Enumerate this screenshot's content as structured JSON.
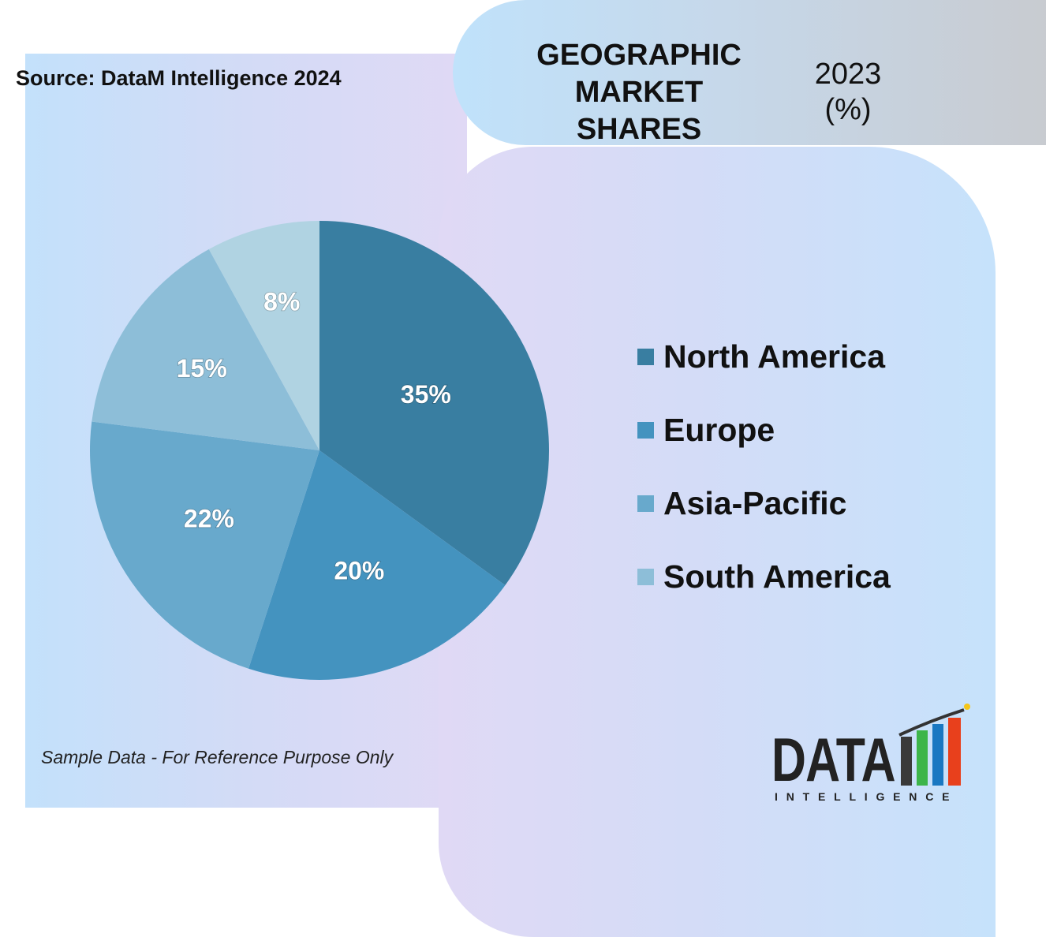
{
  "header": {
    "title": "GEOGRAPHIC\nMARKET\nSHARES",
    "subtitle": "2023\n(%)"
  },
  "source": "Source: DataM Intelligence 2024",
  "note": "Sample Data - For Reference Purpose Only",
  "logo": {
    "word": "DATA",
    "sub": "INTELLIGENCE"
  },
  "colors": {
    "North America": "#397ea1",
    "Europe": "#4493bf",
    "Asia-Pacific": "#68a9cc",
    "South America": "#8dbed8",
    "Others": "#b0d3e2"
  },
  "legend": [
    {
      "label": "North America",
      "color": "#397ea1"
    },
    {
      "label": "Europe",
      "color": "#4493bf"
    },
    {
      "label": "Asia-Pacific",
      "color": "#68a9cc"
    },
    {
      "label": "South America",
      "color": "#8dbed8"
    }
  ],
  "chart_data": {
    "type": "pie",
    "title": "GEOGRAPHIC MARKET SHARES",
    "subtitle": "2023 (%)",
    "slices": [
      {
        "label": "North America",
        "value": 35,
        "display": "35%"
      },
      {
        "label": "Europe",
        "value": 20,
        "display": "20%"
      },
      {
        "label": "Asia-Pacific",
        "value": 22,
        "display": "22%"
      },
      {
        "label": "South America",
        "value": 15,
        "display": "15%"
      },
      {
        "label": "",
        "value": 8,
        "display": "8%"
      }
    ],
    "legend_position": "right"
  }
}
